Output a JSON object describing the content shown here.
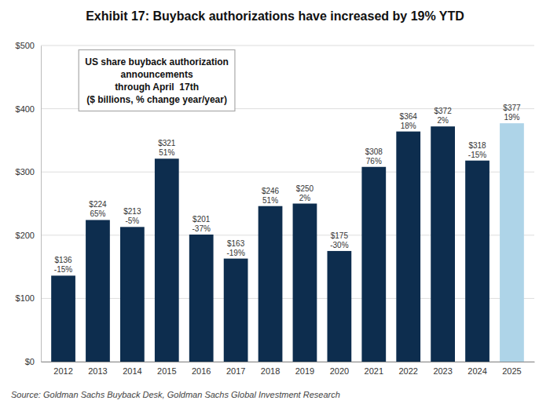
{
  "chart_data": {
    "type": "bar",
    "title": "Exhibit 17: Buyback authorizations have increased by 19% YTD",
    "annotation": "US share buyback authorization\nannouncements\nthrough April  17th\n($ billions, % change year/year)",
    "source": "Source: Goldman Sachs Buyback Desk, Goldman Sachs Global Investment Research",
    "categories": [
      "2012",
      "2013",
      "2014",
      "2015",
      "2016",
      "2017",
      "2018",
      "2019",
      "2020",
      "2021",
      "2022",
      "2023",
      "2024",
      "2025"
    ],
    "values": [
      136,
      224,
      213,
      321,
      201,
      163,
      246,
      250,
      175,
      308,
      364,
      372,
      318,
      377
    ],
    "value_labels": [
      "$136",
      "$224",
      "$213",
      "$321",
      "$201",
      "$163",
      "$246",
      "$250",
      "$175",
      "$308",
      "$364",
      "$372",
      "$318",
      "$377"
    ],
    "pct_changes": [
      "-15%",
      "65%",
      "-5%",
      "51%",
      "-37%",
      "-19%",
      "51%",
      "2%",
      "-30%",
      "76%",
      "18%",
      "2%",
      "-15%",
      "19%"
    ],
    "colors": [
      "#0d2d4e",
      "#0d2d4e",
      "#0d2d4e",
      "#0d2d4e",
      "#0d2d4e",
      "#0d2d4e",
      "#0d2d4e",
      "#0d2d4e",
      "#0d2d4e",
      "#0d2d4e",
      "#0d2d4e",
      "#0d2d4e",
      "#0d2d4e",
      "#aed4e8"
    ],
    "ylim": [
      0,
      500
    ],
    "yticks": [
      {
        "value": 0,
        "label": "$0"
      },
      {
        "value": 100,
        "label": "$100"
      },
      {
        "value": 200,
        "label": "$200"
      },
      {
        "value": 300,
        "label": "$300"
      },
      {
        "value": 400,
        "label": "$400"
      },
      {
        "value": 500,
        "label": "$500"
      }
    ],
    "grid": true,
    "data_labels": true
  }
}
